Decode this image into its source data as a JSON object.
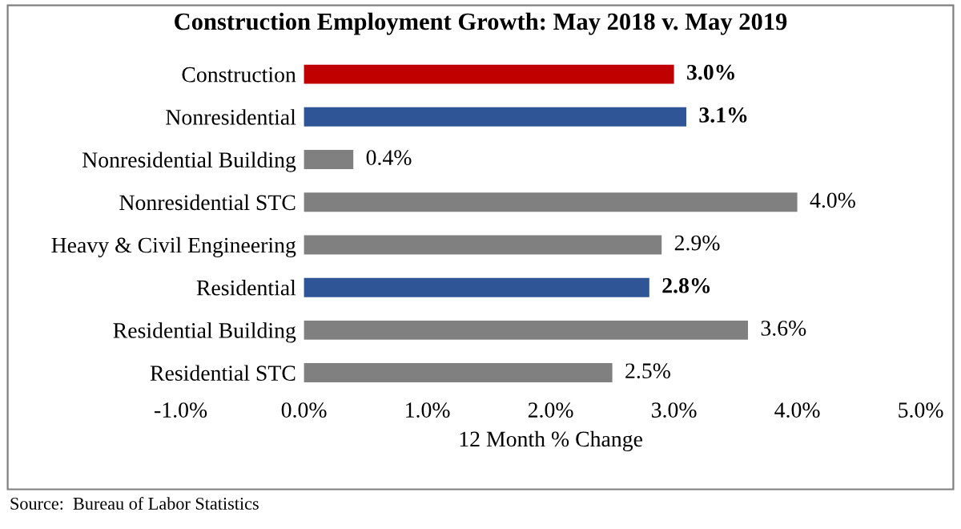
{
  "chart_data": {
    "type": "bar",
    "orientation": "horizontal",
    "title": "Construction Employment Growth: May 2018 v. May 2019",
    "categories": [
      "Construction",
      "Nonresidential",
      "Nonresidential Building",
      "Nonresidential STC",
      "Heavy & Civil Engineering",
      "Residential",
      "Residential Building",
      "Residential STC"
    ],
    "values": [
      3.0,
      3.1,
      0.4,
      4.0,
      2.9,
      2.8,
      3.6,
      2.5
    ],
    "colors": [
      "#c00000",
      "#2f5597",
      "#808080",
      "#808080",
      "#808080",
      "#2f5597",
      "#808080",
      "#808080"
    ],
    "value_labels": [
      "3.0%",
      "3.1%",
      "0.4%",
      "4.0%",
      "2.9%",
      "2.8%",
      "3.6%",
      "2.5%"
    ],
    "xlabel": "12 Month % Change",
    "xlim": [
      -1,
      5
    ],
    "xticks": [
      {
        "value": -1,
        "label": "-1.0%"
      },
      {
        "value": 0,
        "label": "0.0%"
      },
      {
        "value": 1,
        "label": "1.0%"
      },
      {
        "value": 2,
        "label": "2.0%"
      },
      {
        "value": 3,
        "label": "3.0%"
      },
      {
        "value": 4,
        "label": "4.0%"
      },
      {
        "value": 5,
        "label": "5.0%"
      }
    ],
    "grid": false,
    "annotations": [
      "Source:  Bureau of Labor Statistics"
    ]
  }
}
